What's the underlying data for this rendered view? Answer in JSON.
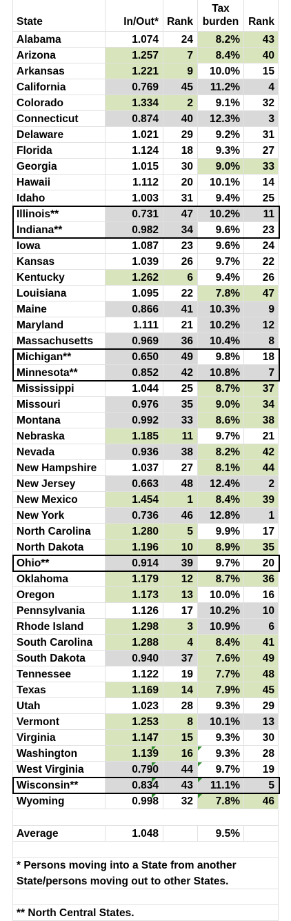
{
  "table": {
    "headers": {
      "state": "State",
      "in_out": "In/Out*",
      "rank1": "Rank",
      "tax_line1": "Tax",
      "tax_line2": "burden",
      "rank2": "Rank"
    },
    "rows": [
      {
        "state": "Alabama",
        "in_out": "1.074",
        "rank1": "24",
        "tax": "8.2%",
        "rank2": "43",
        "io_shade": "",
        "tax_shade": "green"
      },
      {
        "state": "Arizona",
        "in_out": "1.257",
        "rank1": "7",
        "tax": "8.4%",
        "rank2": "40",
        "io_shade": "green",
        "tax_shade": "green"
      },
      {
        "state": "Arkansas",
        "in_out": "1.221",
        "rank1": "9",
        "tax": "10.0%",
        "rank2": "15",
        "io_shade": "green",
        "tax_shade": ""
      },
      {
        "state": "California",
        "in_out": "0.769",
        "rank1": "45",
        "tax": "11.2%",
        "rank2": "4",
        "io_shade": "gray",
        "tax_shade": "gray"
      },
      {
        "state": "Colorado",
        "in_out": "1.334",
        "rank1": "2",
        "tax": "9.1%",
        "rank2": "32",
        "io_shade": "green",
        "tax_shade": ""
      },
      {
        "state": "Connecticut",
        "in_out": "0.874",
        "rank1": "40",
        "tax": "12.3%",
        "rank2": "3",
        "io_shade": "gray",
        "tax_shade": "gray"
      },
      {
        "state": "Delaware",
        "in_out": "1.021",
        "rank1": "29",
        "tax": "9.2%",
        "rank2": "31",
        "io_shade": "",
        "tax_shade": ""
      },
      {
        "state": "Florida",
        "in_out": "1.124",
        "rank1": "18",
        "tax": "9.3%",
        "rank2": "27",
        "io_shade": "",
        "tax_shade": ""
      },
      {
        "state": "Georgia",
        "in_out": "1.015",
        "rank1": "30",
        "tax": "9.0%",
        "rank2": "33",
        "io_shade": "",
        "tax_shade": "green"
      },
      {
        "state": "Hawaii",
        "in_out": "1.112",
        "rank1": "20",
        "tax": "10.1%",
        "rank2": "14",
        "io_shade": "",
        "tax_shade": ""
      },
      {
        "state": "Idaho",
        "in_out": "1.003",
        "rank1": "31",
        "tax": "9.4%",
        "rank2": "25",
        "io_shade": "",
        "tax_shade": ""
      },
      {
        "state": "Illinois**",
        "in_out": "0.731",
        "rank1": "47",
        "tax": "10.2%",
        "rank2": "11",
        "io_shade": "gray",
        "tax_shade": "gray"
      },
      {
        "state": "Indiana**",
        "in_out": "0.982",
        "rank1": "34",
        "tax": "9.6%",
        "rank2": "23",
        "io_shade": "gray",
        "tax_shade": ""
      },
      {
        "state": "Iowa",
        "in_out": "1.087",
        "rank1": "23",
        "tax": "9.6%",
        "rank2": "24",
        "io_shade": "",
        "tax_shade": ""
      },
      {
        "state": "Kansas",
        "in_out": "1.039",
        "rank1": "26",
        "tax": "9.7%",
        "rank2": "22",
        "io_shade": "",
        "tax_shade": ""
      },
      {
        "state": "Kentucky",
        "in_out": "1.262",
        "rank1": "6",
        "tax": "9.4%",
        "rank2": "26",
        "io_shade": "green",
        "tax_shade": ""
      },
      {
        "state": "Louisiana",
        "in_out": "1.095",
        "rank1": "22",
        "tax": "7.8%",
        "rank2": "47",
        "io_shade": "",
        "tax_shade": "green"
      },
      {
        "state": "Maine",
        "in_out": "0.866",
        "rank1": "41",
        "tax": "10.3%",
        "rank2": "9",
        "io_shade": "gray",
        "tax_shade": "gray"
      },
      {
        "state": "Maryland",
        "in_out": "1.111",
        "rank1": "21",
        "tax": "10.2%",
        "rank2": "12",
        "io_shade": "",
        "tax_shade": "gray"
      },
      {
        "state": "Massachusetts",
        "in_out": "0.969",
        "rank1": "36",
        "tax": "10.4%",
        "rank2": "8",
        "io_shade": "gray",
        "tax_shade": "gray"
      },
      {
        "state": "Michigan**",
        "in_out": "0.650",
        "rank1": "49",
        "tax": "9.8%",
        "rank2": "18",
        "io_shade": "gray",
        "tax_shade": ""
      },
      {
        "state": "Minnesota**",
        "in_out": "0.852",
        "rank1": "42",
        "tax": "10.8%",
        "rank2": "7",
        "io_shade": "gray",
        "tax_shade": "gray"
      },
      {
        "state": "Mississippi",
        "in_out": "1.044",
        "rank1": "25",
        "tax": "8.7%",
        "rank2": "37",
        "io_shade": "",
        "tax_shade": "green"
      },
      {
        "state": "Missouri",
        "in_out": "0.976",
        "rank1": "35",
        "tax": "9.0%",
        "rank2": "34",
        "io_shade": "gray",
        "tax_shade": "green"
      },
      {
        "state": "Montana",
        "in_out": "0.992",
        "rank1": "33",
        "tax": "8.6%",
        "rank2": "38",
        "io_shade": "gray",
        "tax_shade": "green"
      },
      {
        "state": "Nebraska",
        "in_out": "1.185",
        "rank1": "11",
        "tax": "9.7%",
        "rank2": "21",
        "io_shade": "green",
        "tax_shade": ""
      },
      {
        "state": "Nevada",
        "in_out": "0.936",
        "rank1": "38",
        "tax": "8.2%",
        "rank2": "42",
        "io_shade": "gray",
        "tax_shade": "green"
      },
      {
        "state": "New Hampshire",
        "in_out": "1.037",
        "rank1": "27",
        "tax": "8.1%",
        "rank2": "44",
        "io_shade": "",
        "tax_shade": "green"
      },
      {
        "state": "New Jersey",
        "in_out": "0.663",
        "rank1": "48",
        "tax": "12.4%",
        "rank2": "2",
        "io_shade": "gray",
        "tax_shade": "gray"
      },
      {
        "state": "New Mexico",
        "in_out": "1.454",
        "rank1": "1",
        "tax": "8.4%",
        "rank2": "39",
        "io_shade": "green",
        "tax_shade": "green"
      },
      {
        "state": "New York",
        "in_out": "0.736",
        "rank1": "46",
        "tax": "12.8%",
        "rank2": "1",
        "io_shade": "gray",
        "tax_shade": "gray"
      },
      {
        "state": "North Carolina",
        "in_out": "1.280",
        "rank1": "5",
        "tax": "9.9%",
        "rank2": "17",
        "io_shade": "green",
        "tax_shade": ""
      },
      {
        "state": "North Dakota",
        "in_out": "1.196",
        "rank1": "10",
        "tax": "8.9%",
        "rank2": "35",
        "io_shade": "green",
        "tax_shade": "green"
      },
      {
        "state": "Ohio**",
        "in_out": "0.914",
        "rank1": "39",
        "tax": "9.7%",
        "rank2": "20",
        "io_shade": "gray",
        "tax_shade": ""
      },
      {
        "state": "Oklahoma",
        "in_out": "1.179",
        "rank1": "12",
        "tax": "8.7%",
        "rank2": "36",
        "io_shade": "green",
        "tax_shade": "green"
      },
      {
        "state": "Oregon",
        "in_out": "1.173",
        "rank1": "13",
        "tax": "10.0%",
        "rank2": "16",
        "io_shade": "green",
        "tax_shade": ""
      },
      {
        "state": "Pennsylvania",
        "in_out": "1.126",
        "rank1": "17",
        "tax": "10.2%",
        "rank2": "10",
        "io_shade": "",
        "tax_shade": "gray"
      },
      {
        "state": "Rhode Island",
        "in_out": "1.298",
        "rank1": "3",
        "tax": "10.9%",
        "rank2": "6",
        "io_shade": "green",
        "tax_shade": "gray"
      },
      {
        "state": "South Carolina",
        "in_out": "1.288",
        "rank1": "4",
        "tax": "8.4%",
        "rank2": "41",
        "io_shade": "green",
        "tax_shade": "green"
      },
      {
        "state": "South Dakota",
        "in_out": "0.940",
        "rank1": "37",
        "tax": "7.6%",
        "rank2": "49",
        "io_shade": "gray",
        "tax_shade": "green"
      },
      {
        "state": "Tennessee",
        "in_out": "1.122",
        "rank1": "19",
        "tax": "7.7%",
        "rank2": "48",
        "io_shade": "",
        "tax_shade": "green"
      },
      {
        "state": "Texas",
        "in_out": "1.169",
        "rank1": "14",
        "tax": "7.9%",
        "rank2": "45",
        "io_shade": "green",
        "tax_shade": "green"
      },
      {
        "state": "Utah",
        "in_out": "1.023",
        "rank1": "28",
        "tax": "9.3%",
        "rank2": "29",
        "io_shade": "",
        "tax_shade": ""
      },
      {
        "state": "Vermont",
        "in_out": "1.253",
        "rank1": "8",
        "tax": "10.1%",
        "rank2": "13",
        "io_shade": "green",
        "tax_shade": "gray"
      },
      {
        "state": "Virginia",
        "in_out": "1.147",
        "rank1": "15",
        "tax": "9.3%",
        "rank2": "30",
        "io_shade": "green",
        "tax_shade": ""
      },
      {
        "state": "Washington",
        "in_out": "1.139",
        "rank1": "16",
        "tax": "9.3%",
        "rank2": "28",
        "io_shade": "green",
        "tax_shade": ""
      },
      {
        "state": "West Virginia",
        "in_out": "0.790",
        "rank1": "44",
        "tax": "9.7%",
        "rank2": "19",
        "io_shade": "gray",
        "tax_shade": ""
      },
      {
        "state": "Wisconsin**",
        "in_out": "0.834",
        "rank1": "43",
        "tax": "11.1%",
        "rank2": "5",
        "io_shade": "gray",
        "tax_shade": "gray"
      },
      {
        "state": "Wyoming",
        "in_out": "0.998",
        "rank1": "32",
        "tax": "7.8%",
        "rank2": "46",
        "io_shade": "",
        "tax_shade": "green"
      }
    ],
    "average": {
      "label": "Average",
      "in_out": "1.048",
      "tax": "9.5%"
    },
    "notes": {
      "in_out_note": "* Persons moving into a State from another State/persons moving out to other States.",
      "north_central_note": "** North Central States."
    },
    "colors": {
      "green_shade": "#d8e4bc",
      "gray_shade": "#d9d9d9",
      "outline": "#000000"
    }
  }
}
